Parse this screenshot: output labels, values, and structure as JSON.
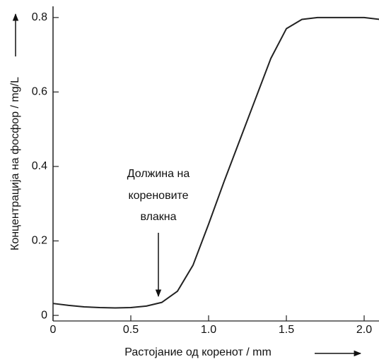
{
  "chart_data": {
    "type": "line",
    "x_label": "Растојание од коренот / mm",
    "y_label": "Концентрација на фосфор / mg/L",
    "annotation": [
      "Должина на",
      "кореновите",
      "влакна"
    ],
    "x": [
      0,
      0.1,
      0.2,
      0.3,
      0.4,
      0.5,
      0.6,
      0.7,
      0.8,
      0.9,
      1.0,
      1.1,
      1.2,
      1.3,
      1.4,
      1.5,
      1.6,
      1.7,
      1.8,
      1.9,
      2.0,
      2.1
    ],
    "series": [
      {
        "color": "#222222",
        "values": [
          0.032,
          0.027,
          0.023,
          0.021,
          0.02,
          0.021,
          0.025,
          0.035,
          0.065,
          0.135,
          0.245,
          0.36,
          0.47,
          0.58,
          0.69,
          0.77,
          0.795,
          0.8,
          0.8,
          0.8,
          0.8,
          0.795
        ]
      }
    ],
    "xlim": [
      0,
      2.1
    ],
    "ylim": [
      -0.015,
      0.83
    ],
    "xticks": [
      0,
      0.5,
      {
        "value": 1,
        "label": "1.0"
      },
      1.5,
      {
        "value": 2,
        "label": "2.0"
      }
    ],
    "yticks": [
      0,
      0.2,
      0.4,
      0.6,
      0.8
    ]
  }
}
